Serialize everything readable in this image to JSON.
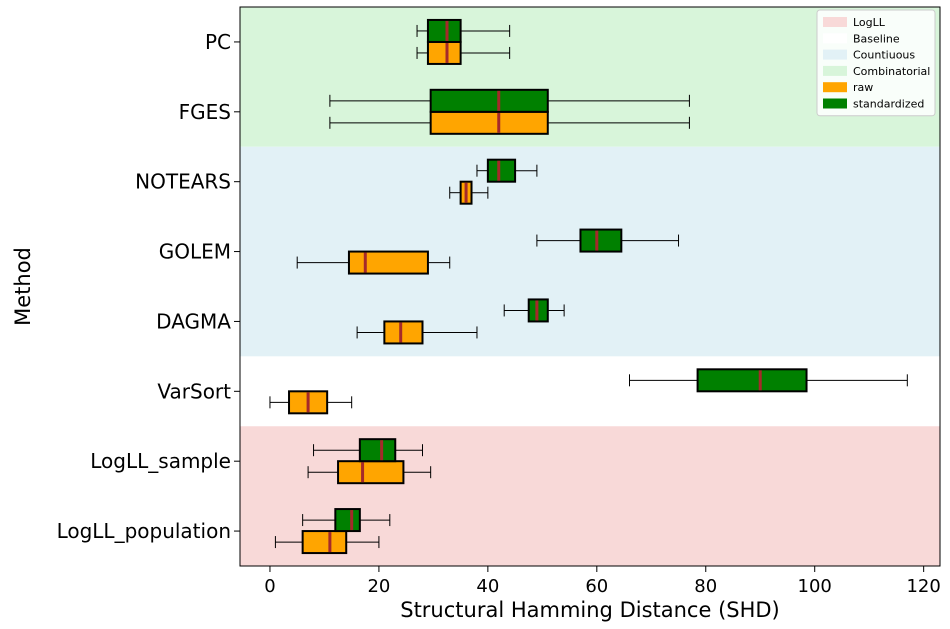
{
  "chart_data": {
    "type": "boxplot",
    "orientation": "horizontal",
    "xlabel": "Structural Hamming Distance (SHD)",
    "ylabel": "Method",
    "xlim": [
      -5.5,
      123
    ],
    "xticks": [
      0,
      20,
      40,
      60,
      80,
      100,
      120
    ],
    "grid": false,
    "legend_position": "top-right",
    "categories": [
      "PC",
      "FGES",
      "NOTEARS",
      "GOLEM",
      "DAGMA",
      "VarSort",
      "LogLL_sample",
      "LogLL_population"
    ],
    "background_bands": [
      {
        "name": "Combinatorial",
        "categories": [
          "PC",
          "FGES"
        ],
        "color": "#d8f5da"
      },
      {
        "name": "Countiuous",
        "categories": [
          "NOTEARS",
          "GOLEM",
          "DAGMA"
        ],
        "color": "#e2f1f6"
      },
      {
        "name": "Baseline",
        "categories": [
          "VarSort"
        ],
        "color": "#ffffff"
      },
      {
        "name": "LogLL",
        "categories": [
          "LogLL_sample",
          "LogLL_population"
        ],
        "color": "#f8d9d8"
      }
    ],
    "legend": [
      {
        "label": "LogLL",
        "color": "#f8d9d8"
      },
      {
        "label": "Baseline",
        "color": "#ffffff"
      },
      {
        "label": "Countiuous",
        "color": "#e2f1f6"
      },
      {
        "label": "Combinatorial",
        "color": "#d8f5da"
      },
      {
        "label": "raw",
        "color": "#ffa500"
      },
      {
        "label": "standardized",
        "color": "#008000"
      }
    ],
    "median_color": "#a52a2a",
    "series": [
      {
        "name": "standardized",
        "color": "#008000",
        "boxes": [
          {
            "category": "PC",
            "whislo": 27,
            "q1": 29,
            "med": 32.5,
            "q3": 35,
            "whishi": 44
          },
          {
            "category": "FGES",
            "whislo": 11,
            "q1": 29.5,
            "med": 42,
            "q3": 51,
            "whishi": 77
          },
          {
            "category": "NOTEARS",
            "whislo": 38,
            "q1": 40,
            "med": 42,
            "q3": 45,
            "whishi": 49
          },
          {
            "category": "GOLEM",
            "whislo": 49,
            "q1": 57,
            "med": 60,
            "q3": 64.5,
            "whishi": 75
          },
          {
            "category": "DAGMA",
            "whislo": 43,
            "q1": 47.5,
            "med": 49,
            "q3": 51,
            "whishi": 54
          },
          {
            "category": "VarSort",
            "whislo": 66,
            "q1": 78.5,
            "med": 90,
            "q3": 98.5,
            "whishi": 117
          },
          {
            "category": "LogLL_sample",
            "whislo": 8,
            "q1": 16.5,
            "med": 20.5,
            "q3": 23,
            "whishi": 28
          },
          {
            "category": "LogLL_population",
            "whislo": 6,
            "q1": 12,
            "med": 15,
            "q3": 16.5,
            "whishi": 22
          }
        ]
      },
      {
        "name": "raw",
        "color": "#ffa500",
        "boxes": [
          {
            "category": "PC",
            "whislo": 27,
            "q1": 29,
            "med": 32.5,
            "q3": 35,
            "whishi": 44
          },
          {
            "category": "FGES",
            "whislo": 11,
            "q1": 29.5,
            "med": 42,
            "q3": 51,
            "whishi": 77
          },
          {
            "category": "NOTEARS",
            "whislo": 33,
            "q1": 35,
            "med": 36,
            "q3": 37,
            "whishi": 40
          },
          {
            "category": "GOLEM",
            "whislo": 5,
            "q1": 14.5,
            "med": 17.5,
            "q3": 29,
            "whishi": 33
          },
          {
            "category": "DAGMA",
            "whislo": 16,
            "q1": 21,
            "med": 24,
            "q3": 28,
            "whishi": 38
          },
          {
            "category": "VarSort",
            "whislo": 0,
            "q1": 3.5,
            "med": 7,
            "q3": 10.5,
            "whishi": 15
          },
          {
            "category": "LogLL_sample",
            "whislo": 7,
            "q1": 12.5,
            "med": 17,
            "q3": 24.5,
            "whishi": 29.5
          },
          {
            "category": "LogLL_population",
            "whislo": 1,
            "q1": 6,
            "med": 11,
            "q3": 14,
            "whishi": 20
          }
        ]
      }
    ]
  }
}
